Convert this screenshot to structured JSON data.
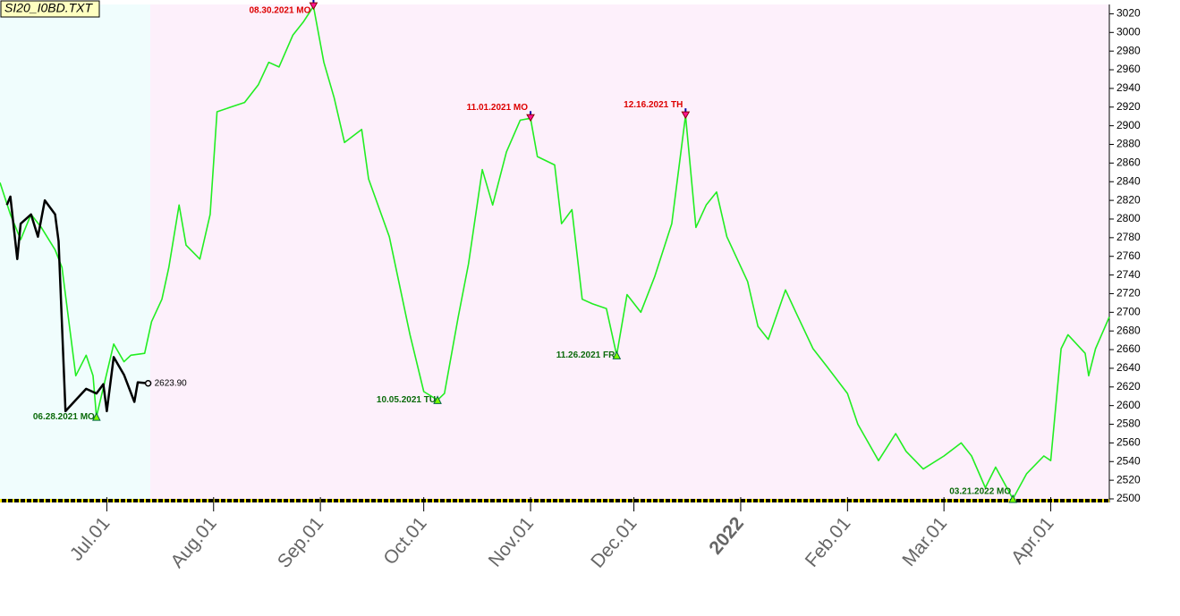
{
  "chart_data": {
    "type": "line",
    "title": "SI20_I0BD.TXT",
    "xlim": [
      "2021-05-31",
      "2022-04-18"
    ],
    "ylim": [
      2500,
      3030
    ],
    "yticks": [
      2500,
      2520,
      2540,
      2560,
      2580,
      2600,
      2620,
      2640,
      2660,
      2680,
      2700,
      2720,
      2740,
      2760,
      2780,
      2800,
      2820,
      2840,
      2860,
      2880,
      2900,
      2920,
      2940,
      2960,
      2980,
      3000,
      3020
    ],
    "xticks": [
      {
        "value": "2021-07-01",
        "label": "Jul.01"
      },
      {
        "value": "2021-08-01",
        "label": "Aug.01"
      },
      {
        "value": "2021-09-01",
        "label": "Sep.01"
      },
      {
        "value": "2021-10-01",
        "label": "Oct.01"
      },
      {
        "value": "2021-11-01",
        "label": "Nov.01"
      },
      {
        "value": "2021-12-01",
        "label": "Dec.01"
      },
      {
        "value": "2022-01-01",
        "label": "2022"
      },
      {
        "value": "2022-02-01",
        "label": "Feb.01"
      },
      {
        "value": "2022-03-01",
        "label": "Mar.01"
      },
      {
        "value": "2022-04-01",
        "label": "Apr.01"
      }
    ],
    "series": [
      {
        "color": "#22ee22",
        "x": [
          "2021-05-31",
          "2021-06-03",
          "2021-06-06",
          "2021-06-09",
          "2021-06-12",
          "2021-06-16",
          "2021-06-18",
          "2021-06-22",
          "2021-06-25",
          "2021-06-27",
          "2021-06-28",
          "2021-07-03",
          "2021-07-06",
          "2021-07-08",
          "2021-07-12",
          "2021-07-14",
          "2021-07-17",
          "2021-07-19",
          "2021-07-22",
          "2021-07-24",
          "2021-07-28",
          "2021-07-31",
          "2021-08-02",
          "2021-08-06",
          "2021-08-10",
          "2021-08-14",
          "2021-08-17",
          "2021-08-20",
          "2021-08-24",
          "2021-08-27",
          "2021-08-30",
          "2021-09-02",
          "2021-09-05",
          "2021-09-08",
          "2021-09-13",
          "2021-09-15",
          "2021-09-21",
          "2021-09-27",
          "2021-10-01",
          "2021-10-05",
          "2021-10-07",
          "2021-10-11",
          "2021-10-14",
          "2021-10-18",
          "2021-10-21",
          "2021-10-25",
          "2021-10-29",
          "2021-11-01",
          "2021-11-03",
          "2021-11-08",
          "2021-11-10",
          "2021-11-13",
          "2021-11-16",
          "2021-11-19",
          "2021-11-23",
          "2021-11-26",
          "2021-11-29",
          "2021-12-03",
          "2021-12-07",
          "2021-12-12",
          "2021-12-16",
          "2021-12-19",
          "2021-12-22",
          "2021-12-25",
          "2021-12-28",
          "2022-01-03",
          "2022-01-06",
          "2022-01-09",
          "2022-01-14",
          "2022-01-17",
          "2022-01-22",
          "2022-01-26",
          "2022-02-01",
          "2022-02-04",
          "2022-02-10",
          "2022-02-15",
          "2022-02-18",
          "2022-02-23",
          "2022-03-01",
          "2022-03-06",
          "2022-03-09",
          "2022-03-13",
          "2022-03-16",
          "2022-03-21",
          "2022-03-25",
          "2022-03-30",
          "2022-04-01",
          "2022-04-04",
          "2022-04-06",
          "2022-04-11",
          "2022-04-12",
          "2022-04-14",
          "2022-04-18"
        ],
        "values": [
          2839,
          2805,
          2778,
          2805,
          2791,
          2767,
          2748,
          2632,
          2654,
          2632,
          2588,
          2666,
          2647,
          2654,
          2656,
          2690,
          2714,
          2748,
          2815,
          2772,
          2757,
          2805,
          2915,
          2920,
          2925,
          2944,
          2968,
          2963,
          2997,
          3011,
          3028,
          2968,
          2930,
          2882,
          2896,
          2843,
          2781,
          2676,
          2615,
          2606,
          2613,
          2695,
          2752,
          2853,
          2815,
          2872,
          2906,
          2908,
          2867,
          2858,
          2795,
          2810,
          2714,
          2709,
          2704,
          2654,
          2719,
          2700,
          2738,
          2795,
          2911,
          2791,
          2815,
          2829,
          2781,
          2733,
          2685,
          2671,
          2724,
          2700,
          2661,
          2642,
          2613,
          2580,
          2541,
          2570,
          2551,
          2532,
          2546,
          2560,
          2546,
          2512,
          2534,
          2500,
          2527,
          2546,
          2541,
          2661,
          2676,
          2656,
          2632,
          2661,
          2695
        ]
      },
      {
        "color": "#000000",
        "x": [
          "2021-06-02",
          "2021-06-03",
          "2021-06-05",
          "2021-06-06",
          "2021-06-09",
          "2021-06-11",
          "2021-06-13",
          "2021-06-16",
          "2021-06-17",
          "2021-06-19",
          "2021-06-22",
          "2021-06-25",
          "2021-06-28",
          "2021-06-30",
          "2021-07-01",
          "2021-07-03",
          "2021-07-06",
          "2021-07-09",
          "2021-07-10",
          "2021-07-13"
        ],
        "values": [
          2815,
          2824,
          2757,
          2795,
          2805,
          2781,
          2820,
          2805,
          2776,
          2594,
          2606,
          2618,
          2613,
          2623,
          2594,
          2652,
          2633,
          2604,
          2625,
          2623.9
        ],
        "value_labels": [
          null,
          null,
          null,
          null,
          null,
          null,
          null,
          null,
          null,
          null,
          null,
          null,
          null,
          null,
          null,
          null,
          null,
          null,
          null,
          "2623.90"
        ]
      }
    ],
    "annotations": [
      {
        "text": "08.30.2021 MO",
        "x": "2021-08-30",
        "y": 3028,
        "kind": "peak"
      },
      {
        "text": "11.01.2021 MO",
        "x": "2021-11-01",
        "y": 2908,
        "kind": "peak"
      },
      {
        "text": "12.16.2021 TH",
        "x": "2021-12-16",
        "y": 2911,
        "kind": "peak"
      },
      {
        "text": "06.28.2021 MO",
        "x": "2021-06-28",
        "y": 2588,
        "kind": "trough"
      },
      {
        "text": "10.05.2021 TU",
        "x": "2021-10-05",
        "y": 2606,
        "kind": "trough"
      },
      {
        "text": "11.26.2021 FR",
        "x": "2021-11-26",
        "y": 2654,
        "kind": "trough"
      },
      {
        "text": "03.21.2022 MO",
        "x": "2022-03-21",
        "y": 2500,
        "kind": "trough"
      }
    ]
  }
}
